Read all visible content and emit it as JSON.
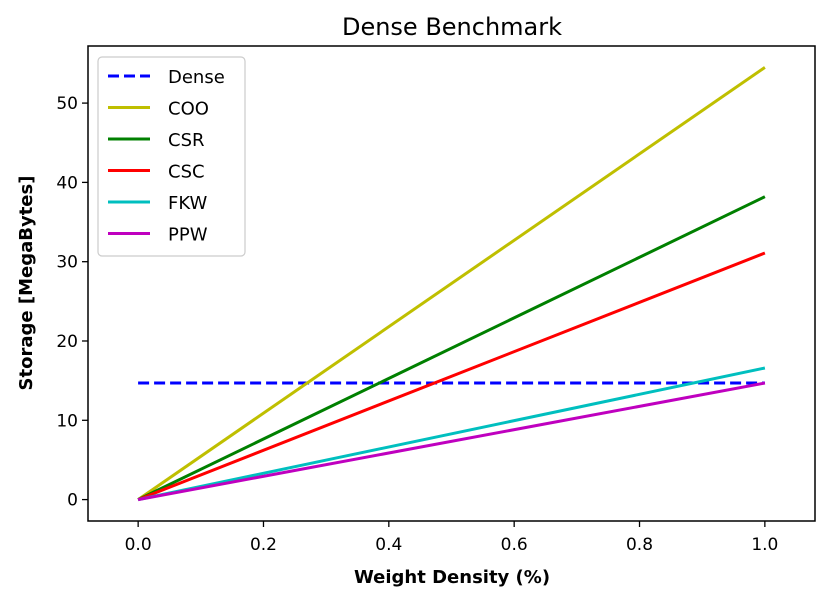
{
  "chart_data": {
    "type": "line",
    "title": "Dense Benchmark",
    "xlabel": "Weight Density (%)",
    "ylabel": "Storage [MegaBytes]",
    "xlim": [
      -0.08,
      1.08
    ],
    "ylim": [
      -2.7,
      57.2
    ],
    "xticks": [
      0.0,
      0.2,
      0.4,
      0.6,
      0.8,
      1.0
    ],
    "xtick_labels": [
      "0.0",
      "0.2",
      "0.4",
      "0.6",
      "0.8",
      "1.0"
    ],
    "yticks": [
      0,
      10,
      20,
      30,
      40,
      50
    ],
    "ytick_labels": [
      "0",
      "10",
      "20",
      "30",
      "40",
      "50"
    ],
    "grid": false,
    "legend_position": "top-left",
    "series": [
      {
        "name": "Dense",
        "color": "#0000ff",
        "dash": "dashed",
        "x": [
          0.0,
          1.0
        ],
        "y": [
          14.7,
          14.7
        ]
      },
      {
        "name": "COO",
        "color": "#bfbf00",
        "dash": "solid",
        "x": [
          0.0,
          1.0
        ],
        "y": [
          0.0,
          54.5
        ]
      },
      {
        "name": "CSR",
        "color": "#008000",
        "dash": "solid",
        "x": [
          0.0,
          1.0
        ],
        "y": [
          0.0,
          38.2
        ]
      },
      {
        "name": "CSC",
        "color": "#ff0000",
        "dash": "solid",
        "x": [
          0.0,
          1.0
        ],
        "y": [
          0.0,
          31.1
        ]
      },
      {
        "name": "FKW",
        "color": "#00bfbf",
        "dash": "solid",
        "x": [
          0.0,
          1.0
        ],
        "y": [
          0.0,
          16.6
        ]
      },
      {
        "name": "PPW",
        "color": "#bf00bf",
        "dash": "solid",
        "x": [
          0.0,
          1.0
        ],
        "y": [
          0.0,
          14.7
        ]
      }
    ]
  }
}
